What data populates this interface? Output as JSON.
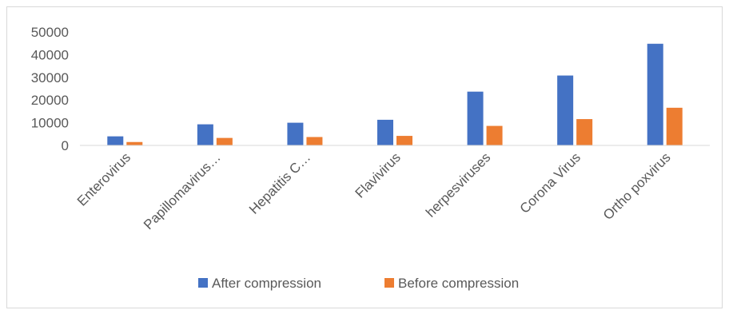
{
  "chart_data": {
    "type": "bar",
    "categories": [
      "Enterovirus",
      "Papillomavirus…",
      "Hepatitis C…",
      "Flavivirus",
      "herpesviruses",
      "Corona Virus",
      "Ortho poxvirus"
    ],
    "series": [
      {
        "name": "After compression",
        "color": "#4472c4",
        "values": [
          4000,
          9300,
          10000,
          11300,
          23700,
          30800,
          44800
        ]
      },
      {
        "name": "Before compression",
        "color": "#ed7d31",
        "values": [
          1500,
          3300,
          3700,
          4200,
          8600,
          11600,
          16600
        ]
      }
    ],
    "yticks": [
      "0",
      "10000",
      "20000",
      "30000",
      "40000",
      "50000"
    ],
    "ylim": [
      0,
      50000
    ],
    "grid": false,
    "legend_position": "bottom",
    "title": "",
    "xlabel": "",
    "ylabel": ""
  }
}
